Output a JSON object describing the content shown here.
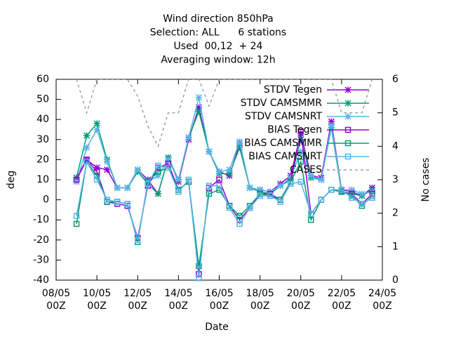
{
  "chart_data": {
    "type": "line",
    "title": [
      "Wind direction 850hPa",
      "Selection: ALL      6 stations",
      "Used  00,12  + 24",
      "Averaging window: 12h"
    ],
    "xlabel": "Date",
    "ylabel": "deg",
    "y2label": "No cases",
    "x": [
      9,
      9.5,
      10,
      10.5,
      11,
      11.5,
      12,
      12.5,
      13,
      13.5,
      14,
      14.5,
      15,
      15.5,
      16,
      16.5,
      17,
      17.5,
      18,
      18.5,
      19,
      19.5,
      20,
      20.5,
      21,
      21.5,
      22,
      22.5,
      23,
      23.5
    ],
    "xlim": [
      8,
      24
    ],
    "xticks": [
      {
        "value": 8,
        "label": "08/05\n00Z"
      },
      {
        "value": 10,
        "label": "10/05\n00Z"
      },
      {
        "value": 12,
        "label": "12/05\n00Z"
      },
      {
        "value": 14,
        "label": "14/05\n00Z"
      },
      {
        "value": 16,
        "label": "16/05\n00Z"
      },
      {
        "value": 18,
        "label": "18/05\n00Z"
      },
      {
        "value": 20,
        "label": "20/05\n00Z"
      },
      {
        "value": 22,
        "label": "22/05\n00Z"
      },
      {
        "value": 24,
        "label": "24/05\n00Z"
      }
    ],
    "ylim": [
      -40,
      60
    ],
    "yticks": [
      -40,
      -30,
      -20,
      -10,
      0,
      10,
      20,
      30,
      40,
      50,
      60
    ],
    "y2lim": [
      0,
      6
    ],
    "y2ticks": [
      0,
      1,
      2,
      3,
      4,
      5,
      6
    ],
    "legend": "top-right",
    "series": [
      {
        "name": "STDV Tegen",
        "color": "#9400d3",
        "marker": "star",
        "values": [
          11,
          20,
          16,
          15,
          6,
          6,
          15,
          10,
          3,
          21,
          9,
          30,
          46,
          24,
          14,
          12,
          28,
          6,
          5,
          4,
          8,
          12,
          33,
          12,
          11,
          39,
          5,
          4,
          2,
          6
        ]
      },
      {
        "name": "STDV CAMSMMR",
        "color": "#009e73",
        "marker": "star",
        "values": [
          11,
          32,
          38,
          20,
          6,
          6,
          14,
          8,
          3,
          21,
          10,
          31,
          44,
          24,
          13,
          13,
          26,
          6,
          4,
          3,
          7,
          10,
          30,
          11,
          10,
          36,
          4,
          3,
          2,
          5
        ]
      },
      {
        "name": "STDV CAMSNRT",
        "color": "#56b4e9",
        "marker": "star",
        "values": [
          9,
          26,
          35,
          19,
          6,
          6,
          15,
          9,
          12,
          20,
          10,
          31,
          51,
          24,
          14,
          15,
          29,
          6,
          5,
          4,
          7,
          11,
          24,
          12,
          10,
          37,
          5,
          5,
          3,
          4
        ]
      },
      {
        "name": "BIAS Tegen",
        "color": "#9400d3",
        "marker": "square",
        "values": [
          10,
          20,
          14,
          -1,
          -2,
          -3,
          -19,
          7,
          16,
          18,
          5,
          9,
          -37,
          6,
          10,
          -3,
          -10,
          -4,
          3,
          3,
          0,
          9,
          34,
          -7,
          0,
          5,
          4,
          3,
          -2,
          3
        ]
      },
      {
        "name": "BIAS CAMSMMR",
        "color": "#009e73",
        "marker": "square",
        "values": [
          -12,
          19,
          12,
          -1,
          -1,
          -2,
          -21,
          9,
          14,
          16,
          5,
          9,
          -33,
          3,
          5,
          -3,
          -8,
          -3,
          3,
          2,
          0,
          9,
          19,
          -10,
          0,
          5,
          4,
          2,
          -3,
          2
        ]
      },
      {
        "name": "BIAS CAMSNRT",
        "color": "#56b4e9",
        "marker": "square",
        "values": [
          -8,
          19,
          10,
          0,
          -1,
          -2,
          -20,
          8,
          17,
          16,
          4,
          10,
          -39,
          7,
          7,
          -4,
          -12,
          -4,
          2,
          2,
          -1,
          8,
          9,
          -7,
          0,
          5,
          5,
          1,
          -2,
          1
        ]
      },
      {
        "name": "CASES",
        "color": "#a0a0a0",
        "marker": "none",
        "dash": true,
        "axis": "y2",
        "values": [
          6,
          5,
          6,
          6,
          6,
          6,
          5.5,
          4.6,
          4,
          5,
          5,
          6,
          6,
          5.2,
          6,
          6,
          6,
          6,
          6,
          6,
          6,
          6,
          6,
          6,
          6,
          6,
          5,
          5,
          5,
          6
        ]
      }
    ]
  }
}
